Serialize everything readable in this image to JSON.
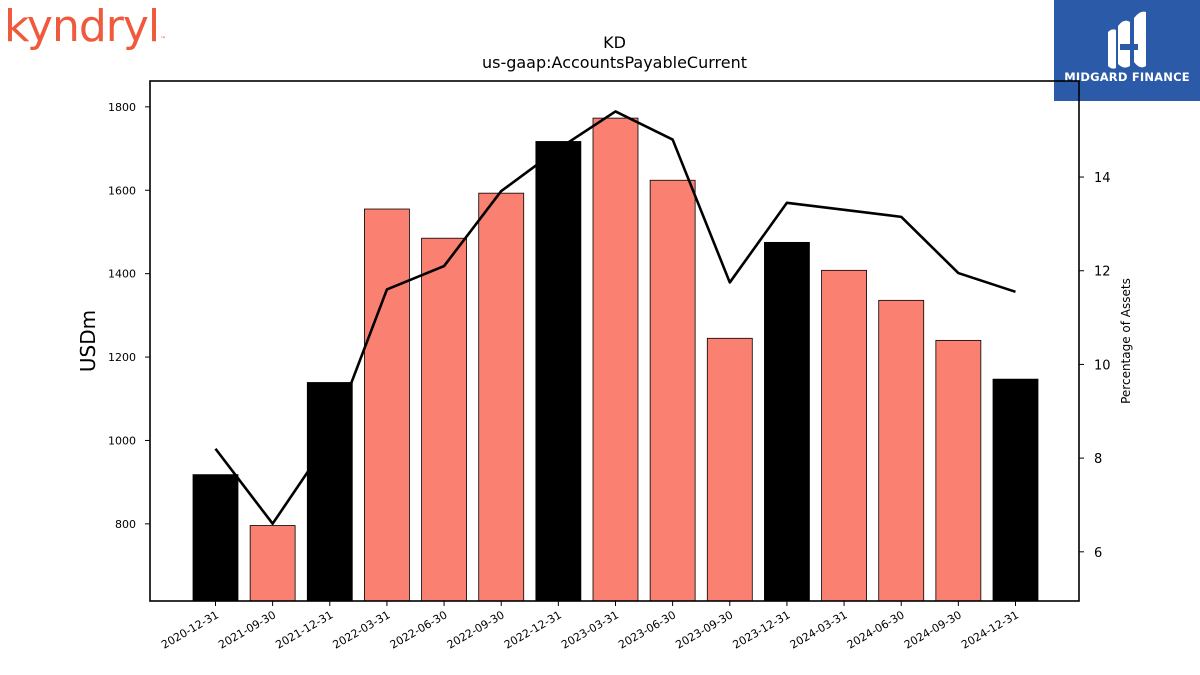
{
  "logos": {
    "left": {
      "text": "kyndryl",
      "tm": "™",
      "color": "#f05a3c"
    },
    "right": {
      "text": "MIDGARD FINANCE",
      "background": "#2b5aa8"
    }
  },
  "chart_data": {
    "type": "bar",
    "title": "KD",
    "subtitle": "us-gaap:AccountsPayableCurrent",
    "ylabel": "USDm",
    "y2label": "Percentage of Assets",
    "categories": [
      "2020-12-31",
      "2021-09-30",
      "2021-12-31",
      "2022-03-31",
      "2022-06-30",
      "2022-09-30",
      "2022-12-31",
      "2023-03-31",
      "2023-06-30",
      "2023-09-30",
      "2023-12-31",
      "2024-03-31",
      "2024-06-30",
      "2024-09-30",
      "2024-12-31"
    ],
    "series": [
      {
        "type": "bar",
        "axis": "left",
        "values": [
          918,
          796,
          1139,
          1555,
          1485,
          1593,
          1717,
          1773,
          1624,
          1245,
          1475,
          1408,
          1336,
          1240,
          1147
        ],
        "bar_colors": [
          "#000000",
          "#fa8072",
          "#000000",
          "#fa8072",
          "#fa8072",
          "#fa8072",
          "#000000",
          "#fa8072",
          "#fa8072",
          "#fa8072",
          "#000000",
          "#fa8072",
          "#fa8072",
          "#fa8072",
          "#000000"
        ]
      },
      {
        "type": "line",
        "axis": "right",
        "color": "#000000",
        "values": [
          8.2,
          6.6,
          8.4,
          11.6,
          12.1,
          13.7,
          14.6,
          15.4,
          14.8,
          11.75,
          13.45,
          13.3,
          13.15,
          11.95,
          11.55
        ]
      }
    ],
    "ylim": [
      615,
      1862
    ],
    "yticks": [
      800,
      1000,
      1200,
      1400,
      1600,
      1800
    ],
    "y2lim": [
      4.95,
      16.05
    ],
    "y2ticks": [
      6,
      8,
      10,
      12,
      14
    ],
    "grid": false,
    "legend": "none"
  }
}
